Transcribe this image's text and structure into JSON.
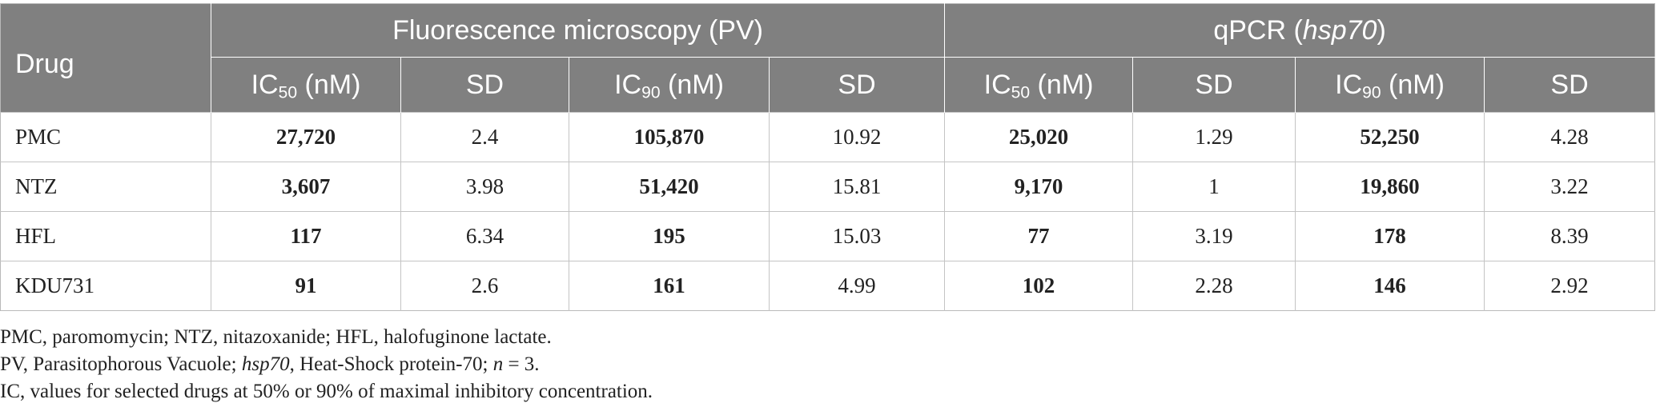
{
  "table": {
    "drug_header": "Drug",
    "groups": [
      {
        "name_main": "Fluorescence microscopy (PV)",
        "name_italic": "",
        "name_suffix": ""
      },
      {
        "name_main": "qPCR (",
        "name_italic": "hsp70",
        "name_suffix": ")"
      }
    ],
    "subheaders": {
      "ic50_prefix": "IC",
      "ic50_sub": "50",
      "ic90_sub": "90",
      "unit": " (nM)",
      "sd": "SD"
    },
    "rows": [
      {
        "drug": "PMC",
        "fm_ic50": "27,720",
        "fm_sd50": "2.4",
        "fm_ic90": "105,870",
        "fm_sd90": "10.92",
        "q_ic50": "25,020",
        "q_sd50": "1.29",
        "q_ic90": "52,250",
        "q_sd90": "4.28"
      },
      {
        "drug": "NTZ",
        "fm_ic50": "3,607",
        "fm_sd50": "3.98",
        "fm_ic90": "51,420",
        "fm_sd90": "15.81",
        "q_ic50": "9,170",
        "q_sd50": "1",
        "q_ic90": "19,860",
        "q_sd90": "3.22"
      },
      {
        "drug": "HFL",
        "fm_ic50": "117",
        "fm_sd50": "6.34",
        "fm_ic90": "195",
        "fm_sd90": "15.03",
        "q_ic50": "77",
        "q_sd50": "3.19",
        "q_ic90": "178",
        "q_sd90": "8.39"
      },
      {
        "drug": "KDU731",
        "fm_ic50": "91",
        "fm_sd50": "2.6",
        "fm_ic90": "161",
        "fm_sd90": "4.99",
        "q_ic50": "102",
        "q_sd50": "2.28",
        "q_ic90": "146",
        "q_sd90": "2.92"
      }
    ]
  },
  "footnotes": {
    "line1": "PMC, paromomycin; NTZ, nitazoxanide; HFL, halofuginone lactate.",
    "line2_a": "PV, Parasitophorous Vacuole; ",
    "line2_italic": "hsp70",
    "line2_b": ", Heat-Shock protein-70; ",
    "line2_n": "n",
    "line2_c": " = 3.",
    "line3": "IC, values for selected drugs at 50% or 90% of maximal inhibitory concentration."
  }
}
